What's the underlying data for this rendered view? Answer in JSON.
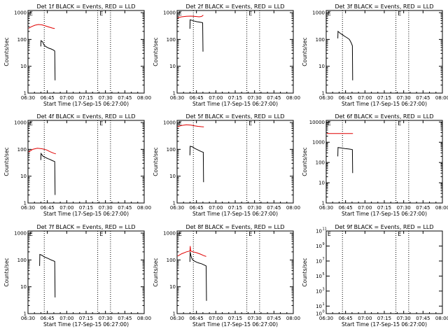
{
  "figure": {
    "colors": {
      "events": "#000000",
      "lld": "#e00000",
      "axes": "#000000",
      "background": "#ffffff"
    }
  },
  "chart_data": [
    {
      "type": "line",
      "scale": "log",
      "title": "Det 1f BLACK = Events, RED = LLD",
      "xlabel": "Start Time (17-Sep-15 06:27:00)",
      "ylabel": "Counts/sec",
      "xlim": [
        0,
        100
      ],
      "ylim": [
        1,
        1200
      ],
      "x_ticks": [
        "06:30",
        "06:45",
        "07:00",
        "07:15",
        "07:30",
        "07:45",
        "08:00"
      ],
      "y_ticks": [
        {
          "v": 1,
          "label": "1"
        },
        {
          "v": 10,
          "label": "10"
        },
        {
          "v": 100,
          "label": "100"
        },
        {
          "v": 1000,
          "label": "1000"
        }
      ],
      "markers": [
        {
          "x": 0.5,
          "label": "E"
        },
        {
          "x": 61,
          "label": "E"
        }
      ],
      "vlines": [
        14,
        60,
        71
      ],
      "series": [
        {
          "name": "LLD",
          "color": "#e00000",
          "points": [
            [
              0.5,
              260
            ],
            [
              3,
              300
            ],
            [
              6,
              340
            ],
            [
              9,
              360
            ],
            [
              12,
              350
            ],
            [
              15,
              320
            ],
            [
              18,
              290
            ],
            [
              21,
              265
            ],
            [
              23,
              255
            ]
          ]
        },
        {
          "name": "Events",
          "color": "#000000",
          "points": [
            [
              11,
              55
            ],
            [
              11.2,
              90
            ],
            [
              12.5,
              82
            ],
            [
              14,
              60
            ],
            [
              16,
              52
            ],
            [
              18,
              47
            ],
            [
              20,
              44
            ],
            [
              22,
              40
            ],
            [
              23,
              37
            ],
            [
              23.3,
              3
            ]
          ]
        }
      ]
    },
    {
      "type": "line",
      "scale": "log",
      "title": "Det 2f BLACK = Events, RED = LLD",
      "xlabel": "Start Time (17-Sep-15 06:27:00)",
      "ylabel": "Counts/sec",
      "xlim": [
        0,
        100
      ],
      "ylim": [
        1,
        1200
      ],
      "x_ticks": [
        "06:30",
        "06:45",
        "07:00",
        "07:15",
        "07:30",
        "07:45",
        "08:00"
      ],
      "y_ticks": [
        {
          "v": 1,
          "label": "1"
        },
        {
          "v": 10,
          "label": "10"
        },
        {
          "v": 100,
          "label": "100"
        },
        {
          "v": 1000,
          "label": "1000"
        }
      ],
      "markers": [
        {
          "x": 0.5,
          "label": "E"
        },
        {
          "x": 61,
          "label": "E"
        }
      ],
      "vlines": [
        14,
        60,
        71
      ],
      "series": [
        {
          "name": "LLD",
          "color": "#e00000",
          "points": [
            [
              0.5,
              650
            ],
            [
              4,
              700
            ],
            [
              8,
              730
            ],
            [
              12,
              740
            ],
            [
              16,
              720
            ],
            [
              19,
              700
            ],
            [
              21,
              720
            ],
            [
              22.5,
              800
            ]
          ]
        },
        {
          "name": "Events",
          "color": "#000000",
          "points": [
            [
              11,
              250
            ],
            [
              11.2,
              540
            ],
            [
              13,
              510
            ],
            [
              15,
              480
            ],
            [
              17,
              460
            ],
            [
              19,
              445
            ],
            [
              21,
              430
            ],
            [
              22,
              420
            ],
            [
              22.3,
              35
            ]
          ]
        }
      ]
    },
    {
      "type": "line",
      "scale": "log",
      "title": "Det 3f BLACK = Events, RED = LLD",
      "xlabel": "Start Time (17-Sep-15 06:27:00)",
      "ylabel": "Counts/sec",
      "xlim": [
        0,
        100
      ],
      "ylim": [
        1,
        1200
      ],
      "x_ticks": [
        "06:30",
        "06:45",
        "07:00",
        "07:15",
        "07:30",
        "07:45",
        "08:00"
      ],
      "y_ticks": [
        {
          "v": 1,
          "label": "1"
        },
        {
          "v": 10,
          "label": "10"
        },
        {
          "v": 100,
          "label": "100"
        },
        {
          "v": 1000,
          "label": "1000"
        }
      ],
      "markers": [
        {
          "x": 0.5,
          "label": "E"
        },
        {
          "x": 61,
          "label": "E"
        }
      ],
      "vlines": [
        14,
        60,
        71
      ],
      "series": [
        {
          "name": "Events",
          "color": "#000000",
          "points": [
            [
              10,
              110
            ],
            [
              10.2,
              200
            ],
            [
              12,
              170
            ],
            [
              14,
              150
            ],
            [
              16,
              130
            ],
            [
              18,
              115
            ],
            [
              20,
              100
            ],
            [
              21.5,
              75
            ],
            [
              22.5,
              58
            ],
            [
              22.8,
              3
            ]
          ]
        }
      ]
    },
    {
      "type": "line",
      "scale": "log",
      "title": "Det 4f BLACK = Events, RED = LLD",
      "xlabel": "Start Time (17-Sep-15 06:27:00)",
      "ylabel": "Counts/sec",
      "xlim": [
        0,
        100
      ],
      "ylim": [
        1,
        1200
      ],
      "x_ticks": [
        "06:30",
        "06:45",
        "07:00",
        "07:15",
        "07:30",
        "07:45",
        "08:00"
      ],
      "y_ticks": [
        {
          "v": 1,
          "label": "1"
        },
        {
          "v": 10,
          "label": "10"
        },
        {
          "v": 100,
          "label": "100"
        },
        {
          "v": 1000,
          "label": "1000"
        }
      ],
      "markers": [
        {
          "x": 0.5,
          "label": "E"
        },
        {
          "x": 61,
          "label": "E"
        }
      ],
      "vlines": [
        14,
        60,
        71
      ],
      "series": [
        {
          "name": "LLD",
          "color": "#e00000",
          "points": [
            [
              0.5,
              80
            ],
            [
              4,
              100
            ],
            [
              8,
              110
            ],
            [
              12,
              105
            ],
            [
              16,
              95
            ],
            [
              19,
              82
            ],
            [
              22,
              72
            ],
            [
              24,
              68
            ]
          ]
        },
        {
          "name": "Events",
          "color": "#000000",
          "points": [
            [
              11,
              40
            ],
            [
              11.2,
              70
            ],
            [
              13,
              55
            ],
            [
              15,
              50
            ],
            [
              17,
              45
            ],
            [
              19,
              42
            ],
            [
              21,
              38
            ],
            [
              23,
              35
            ],
            [
              23.3,
              2
            ]
          ]
        }
      ]
    },
    {
      "type": "line",
      "scale": "log",
      "title": "Det 5f BLACK = Events, RED = LLD",
      "xlabel": "Start Time (17-Sep-15 06:27:00)",
      "ylabel": "Counts/sec",
      "xlim": [
        0,
        100
      ],
      "ylim": [
        1,
        1200
      ],
      "x_ticks": [
        "06:30",
        "06:45",
        "07:00",
        "07:15",
        "07:30",
        "07:45",
        "08:00"
      ],
      "y_ticks": [
        {
          "v": 1,
          "label": "1"
        },
        {
          "v": 10,
          "label": "10"
        },
        {
          "v": 100,
          "label": "100"
        },
        {
          "v": 1000,
          "label": "1000"
        }
      ],
      "markers": [
        {
          "x": 0.5,
          "label": "E"
        },
        {
          "x": 61,
          "label": "E"
        }
      ],
      "vlines": [
        14,
        60,
        71
      ],
      "series": [
        {
          "name": "LLD",
          "color": "#e00000",
          "points": [
            [
              0.5,
              700
            ],
            [
              4,
              780
            ],
            [
              8,
              820
            ],
            [
              12,
              800
            ],
            [
              15,
              750
            ],
            [
              18,
              720
            ],
            [
              21,
              700
            ],
            [
              23,
              690
            ]
          ]
        },
        {
          "name": "Events",
          "color": "#000000",
          "points": [
            [
              11,
              60
            ],
            [
              11.2,
              130
            ],
            [
              13,
              125
            ],
            [
              15,
              110
            ],
            [
              17,
              100
            ],
            [
              19,
              90
            ],
            [
              21,
              82
            ],
            [
              22.5,
              78
            ],
            [
              22.8,
              6
            ]
          ]
        }
      ]
    },
    {
      "type": "line",
      "scale": "log",
      "title": "Det 6f BLACK = Events, RED = LLD",
      "xlabel": "Start Time (17-Sep-15 06:27:00)",
      "ylabel": "Counts/sec",
      "xlim": [
        0,
        100
      ],
      "ylim": [
        1,
        12000
      ],
      "x_ticks": [
        "06:30",
        "06:45",
        "07:00",
        "07:15",
        "07:30",
        "07:45",
        "08:00"
      ],
      "y_ticks": [
        {
          "v": 1,
          "label": "1"
        },
        {
          "v": 10,
          "label": "10"
        },
        {
          "v": 100,
          "label": "100"
        },
        {
          "v": 1000,
          "label": "1000"
        },
        {
          "v": 10000,
          "label": "10000"
        }
      ],
      "markers": [
        {
          "x": 0.5,
          "label": "E"
        },
        {
          "x": 61,
          "label": "E"
        }
      ],
      "vlines": [
        14,
        60,
        71
      ],
      "series": [
        {
          "name": "LLD",
          "color": "#e00000",
          "points": [
            [
              0.5,
              2700
            ],
            [
              23,
              2700
            ]
          ]
        },
        {
          "name": "Events",
          "color": "#000000",
          "points": [
            [
              10,
              200
            ],
            [
              10.2,
              550
            ],
            [
              13,
              520
            ],
            [
              16,
              490
            ],
            [
              19,
              465
            ],
            [
              21,
              450
            ],
            [
              22.5,
              430
            ],
            [
              22.8,
              30
            ]
          ]
        }
      ]
    },
    {
      "type": "line",
      "scale": "log",
      "title": "Det 7f BLACK = Events, RED = LLD",
      "xlabel": "Start Time (17-Sep-15 06:27:00)",
      "ylabel": "Counts/sec",
      "xlim": [
        0,
        100
      ],
      "ylim": [
        1,
        1200
      ],
      "x_ticks": [
        "06:30",
        "06:45",
        "07:00",
        "07:15",
        "07:30",
        "07:45",
        "08:00"
      ],
      "y_ticks": [
        {
          "v": 1,
          "label": "1"
        },
        {
          "v": 10,
          "label": "10"
        },
        {
          "v": 100,
          "label": "100"
        },
        {
          "v": 1000,
          "label": "1000"
        }
      ],
      "markers": [
        {
          "x": 0.5,
          "label": "E"
        },
        {
          "x": 61,
          "label": "E"
        }
      ],
      "vlines": [
        14,
        60,
        71
      ],
      "series": [
        {
          "name": "Events",
          "color": "#000000",
          "points": [
            [
              10,
              60
            ],
            [
              10.2,
              160
            ],
            [
              12,
              150
            ],
            [
              14,
              130
            ],
            [
              16,
              120
            ],
            [
              18,
              110
            ],
            [
              20,
              100
            ],
            [
              22,
              92
            ],
            [
              23,
              88
            ],
            [
              23.3,
              4
            ]
          ]
        }
      ]
    },
    {
      "type": "line",
      "scale": "log",
      "title": "Det 8f BLACK = Events, RED = LLD",
      "xlabel": "Start Time (17-Sep-15 06:27:00)",
      "ylabel": "Counts/sec",
      "xlim": [
        0,
        100
      ],
      "ylim": [
        1,
        1200
      ],
      "x_ticks": [
        "06:30",
        "06:45",
        "07:00",
        "07:15",
        "07:30",
        "07:45",
        "08:00"
      ],
      "y_ticks": [
        {
          "v": 1,
          "label": "1"
        },
        {
          "v": 10,
          "label": "10"
        },
        {
          "v": 100,
          "label": "100"
        },
        {
          "v": 1000,
          "label": "1000"
        }
      ],
      "markers": [
        {
          "x": 0.5,
          "label": "E"
        },
        {
          "x": 61,
          "label": "E"
        }
      ],
      "vlines": [
        14,
        60,
        71
      ],
      "series": [
        {
          "name": "LLD",
          "color": "#e00000",
          "points": [
            [
              0.5,
              140
            ],
            [
              4,
              170
            ],
            [
              8,
              200
            ],
            [
              11,
              215
            ],
            [
              11.3,
              330
            ],
            [
              11.6,
              215
            ],
            [
              14,
              200
            ],
            [
              17,
              185
            ],
            [
              20,
              165
            ],
            [
              23,
              145
            ],
            [
              25,
              135
            ]
          ]
        },
        {
          "name": "Events",
          "color": "#000000",
          "points": [
            [
              11,
              85
            ],
            [
              11.2,
              200
            ],
            [
              12,
              140
            ],
            [
              13,
              105
            ],
            [
              15,
              90
            ],
            [
              17,
              82
            ],
            [
              19,
              76
            ],
            [
              21,
              72
            ],
            [
              23,
              66
            ],
            [
              25,
              60
            ],
            [
              25.3,
              3
            ]
          ]
        }
      ]
    },
    {
      "type": "line",
      "scale": "log",
      "title": "Det 9f BLACK = Events, RED = LLD",
      "xlabel": "Start Time (17-Sep-15 06:27:00)",
      "ylabel": "Counts/sec",
      "xlim": [
        0,
        100
      ],
      "ylim": [
        1,
        100000000000.0
      ],
      "x_ticks": [
        "06:30",
        "06:45",
        "07:00",
        "07:15",
        "07:30",
        "07:45",
        "08:00"
      ],
      "y_ticks": [
        {
          "v": 1,
          "label": "10",
          "exp": "0"
        },
        {
          "v": 10.0,
          "label": "10",
          "exp": "1"
        },
        {
          "v": 1000.0,
          "label": "10",
          "exp": "3"
        },
        {
          "v": 100000.0,
          "label": "10",
          "exp": "5"
        },
        {
          "v": 10000000.0,
          "label": "10",
          "exp": "7"
        },
        {
          "v": 1000000000.0,
          "label": "10",
          "exp": "9"
        },
        {
          "v": 100000000000.0,
          "label": "10",
          "exp": "11"
        }
      ],
      "markers": [
        {
          "x": 0.5,
          "label": "E"
        },
        {
          "x": 61,
          "label": "E"
        }
      ],
      "vlines": [
        14,
        60,
        71
      ],
      "series": []
    }
  ]
}
